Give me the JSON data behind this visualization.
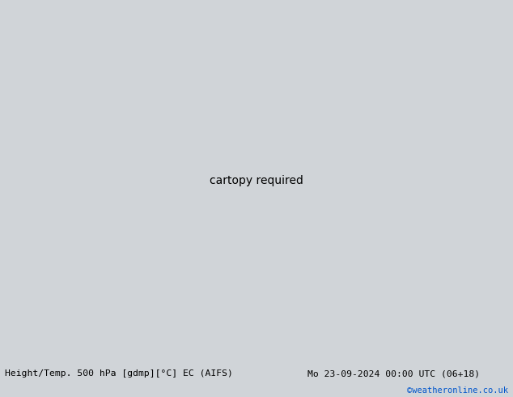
{
  "title_left": "Height/Temp. 500 hPa [gdmp][°C] EC (AIFS)",
  "title_right": "Mo 23-09-2024 00:00 UTC (06+18)",
  "credit": "©weatheronline.co.uk",
  "background_color": "#d0d4d8",
  "land_color": "#b8d8a0",
  "australia_green": "#a8d870",
  "credit_color": "#0055cc",
  "bottom_bar_color": "#e0e0e0",
  "fig_width": 6.34,
  "fig_height": 4.9,
  "lon_min": 90,
  "lon_max": 185,
  "lat_min": -60,
  "lat_max": 5
}
